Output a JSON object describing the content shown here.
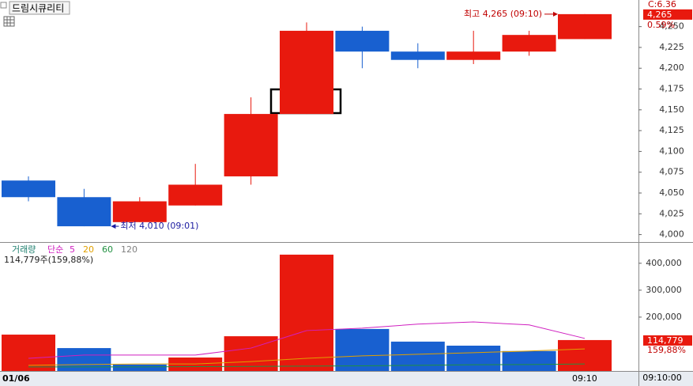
{
  "title": "드림시큐리티",
  "chart_data": [
    {
      "type": "candlestick",
      "categories": [
        "01/06",
        null,
        null,
        null,
        null,
        null,
        null,
        null,
        null,
        null,
        "09:10"
      ],
      "open": [
        4065,
        4045,
        4015,
        4035,
        4070,
        4145,
        4245,
        4220,
        4210,
        4220,
        4235
      ],
      "high": [
        4070,
        4055,
        4045,
        4085,
        4165,
        4255,
        4250,
        4230,
        4245,
        4245,
        4265
      ],
      "low": [
        4040,
        4010,
        4015,
        4035,
        4060,
        4145,
        4200,
        4200,
        4205,
        4215,
        4235
      ],
      "close": [
        4045,
        4010,
        4040,
        4060,
        4145,
        4245,
        4220,
        4210,
        4220,
        4240,
        4265
      ],
      "up_color": "#e8190e",
      "down_color": "#1860d0",
      "ylim": [
        3992,
        4282
      ],
      "yticks": [
        {
          "value": 4000,
          "label": "4,000"
        },
        {
          "value": 4025,
          "label": "4,025"
        },
        {
          "value": 4050,
          "label": "4,050"
        },
        {
          "value": 4075,
          "label": "4,075"
        },
        {
          "value": 4100,
          "label": "4,100"
        },
        {
          "value": 4125,
          "label": "4,125"
        },
        {
          "value": 4150,
          "label": "4,150"
        },
        {
          "value": 4175,
          "label": "4,175"
        },
        {
          "value": 4200,
          "label": "4,200"
        },
        {
          "value": 4225,
          "label": "4,225"
        },
        {
          "value": 4250,
          "label": "4,250"
        }
      ],
      "annotations": [
        {
          "text": "최고 4,265 (09:10)",
          "value": 4265,
          "index": 10,
          "color": "#c00000"
        },
        {
          "text": "최저 4,010 (09:01)",
          "value": 4010,
          "index": 1,
          "color": "#1a1aa0"
        }
      ],
      "header_label": "C:6.36",
      "last_label": "4,265",
      "change_label": "0.59%"
    },
    {
      "type": "volume",
      "title": "거래량",
      "ma_label": "단순",
      "values": [
        135000,
        85000,
        24000,
        50000,
        129000,
        432000,
        156000,
        109000,
        94000,
        74000,
        114779
      ],
      "colors": [
        "#e8190e",
        "#1860d0",
        "#1860d0",
        "#e8190e",
        "#e8190e",
        "#e8190e",
        "#1860d0",
        "#1860d0",
        "#1860d0",
        "#1860d0",
        "#e8190e"
      ],
      "series": [
        {
          "name": "5",
          "color": "#d020c0",
          "values": [
            47000,
            59000,
            59000,
            59000,
            85000,
            150000,
            159000,
            174000,
            182000,
            171000,
            121000
          ]
        },
        {
          "name": "20",
          "color": "#e0a000",
          "values": [
            21000,
            24000,
            26000,
            26000,
            35000,
            47000,
            56000,
            62000,
            68000,
            74000,
            82000
          ]
        },
        {
          "name": "60",
          "color": "#209040",
          "values": [
            15000,
            15000,
            15000,
            16000,
            17000,
            18000,
            19000,
            21000,
            23000,
            24000,
            26000
          ]
        },
        {
          "name": "120",
          "color": "#808080",
          "values": [
            null,
            null,
            null,
            null,
            null,
            null,
            null,
            null,
            null,
            null,
            null
          ]
        }
      ],
      "ylim": [
        0,
        470000
      ],
      "yticks": [
        {
          "value": 200000,
          "label": "200,000"
        },
        {
          "value": 300000,
          "label": "300,000"
        },
        {
          "value": 400000,
          "label": "400,000"
        }
      ],
      "info_label": "114,779주(159,88%)",
      "last_label": "114,779",
      "ratio_label": "159,88%"
    }
  ],
  "cursor_label": "09:10:00"
}
